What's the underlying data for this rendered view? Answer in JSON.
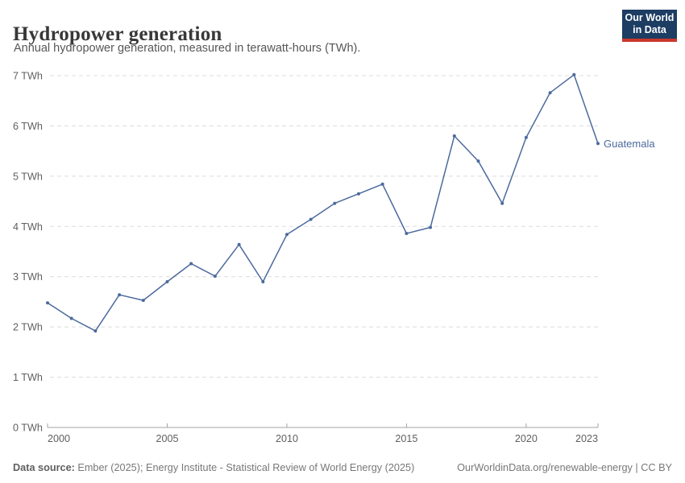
{
  "header": {
    "title": "Hydropower generation",
    "subtitle": "Annual hydropower generation, measured in terawatt-hours (TWh)."
  },
  "logo": {
    "line1": "Our World",
    "line2": "in Data",
    "bg_color": "#1d3d63",
    "accent_color": "#cb372c"
  },
  "chart_data": {
    "type": "line",
    "title": "Hydropower generation",
    "unit": "TWh",
    "xlabel": "",
    "ylabel": "",
    "grid": "horizontal-dashed",
    "legend_position": "end-of-line-label",
    "xlim": [
      2000,
      2023
    ],
    "ylim": [
      0,
      7
    ],
    "x": [
      2000,
      2001,
      2002,
      2003,
      2004,
      2005,
      2006,
      2007,
      2008,
      2009,
      2010,
      2011,
      2012,
      2013,
      2014,
      2015,
      2016,
      2017,
      2018,
      2019,
      2020,
      2021,
      2022,
      2023
    ],
    "series": [
      {
        "name": "Guatemala",
        "color": "#4C6A9C",
        "values": [
          2.48,
          2.17,
          1.92,
          2.64,
          2.53,
          2.9,
          3.26,
          3.01,
          3.64,
          2.9,
          3.84,
          4.14,
          4.46,
          4.65,
          4.84,
          3.86,
          3.98,
          5.8,
          5.3,
          4.46,
          5.77,
          6.66,
          7.02,
          5.65
        ]
      }
    ],
    "yticks": [
      {
        "value": 0,
        "label": "0 TWh"
      },
      {
        "value": 1,
        "label": "1 TWh"
      },
      {
        "value": 2,
        "label": "2 TWh"
      },
      {
        "value": 3,
        "label": "3 TWh"
      },
      {
        "value": 4,
        "label": "4 TWh"
      },
      {
        "value": 5,
        "label": "5 TWh"
      },
      {
        "value": 6,
        "label": "6 TWh"
      },
      {
        "value": 7,
        "label": "7 TWh"
      }
    ],
    "xticks": [
      {
        "value": 2000,
        "label": "2000"
      },
      {
        "value": 2005,
        "label": "2005"
      },
      {
        "value": 2010,
        "label": "2010"
      },
      {
        "value": 2015,
        "label": "2015"
      },
      {
        "value": 2020,
        "label": "2020"
      },
      {
        "value": 2023,
        "label": "2023"
      }
    ]
  },
  "footer": {
    "source_label": "Data source:",
    "source_text": " Ember (2025); Energy Institute - Statistical Review of World Energy (2025)",
    "link_text": "OurWorldinData.org/renewable-energy",
    "separator": " | ",
    "license_text": "CC BY"
  }
}
